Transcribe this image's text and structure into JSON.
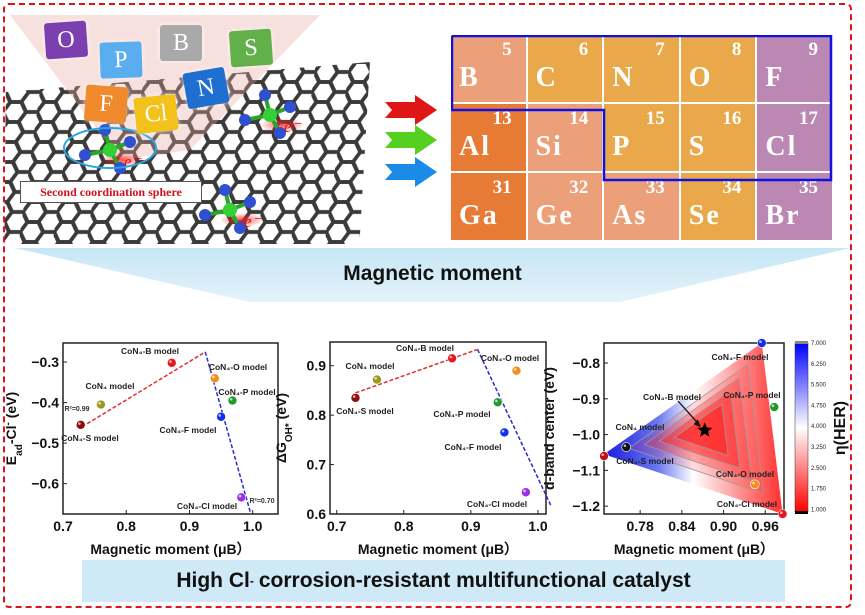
{
  "illustration": {
    "tiles": [
      {
        "label": "O",
        "color": "#7b3fb0"
      },
      {
        "label": "P",
        "color": "#5aaef0"
      },
      {
        "label": "B",
        "color": "#a9a9a9"
      },
      {
        "label": "S",
        "color": "#62b04a"
      },
      {
        "label": "F",
        "color": "#f08a2c"
      },
      {
        "label": "Cl",
        "color": "#f2c21a"
      },
      {
        "label": "N",
        "color": "#1f6fd0"
      }
    ],
    "sphere_label": "Second coordination sphere",
    "electron_label": "e⁻"
  },
  "periodic_table": {
    "cells": [
      {
        "symbol": "B",
        "number": "5",
        "color": "#eba07a"
      },
      {
        "symbol": "C",
        "number": "6",
        "color": "#e9a94a"
      },
      {
        "symbol": "N",
        "number": "7",
        "color": "#e9a94a"
      },
      {
        "symbol": "O",
        "number": "8",
        "color": "#e9a94a"
      },
      {
        "symbol": "F",
        "number": "9",
        "color": "#bb88b3"
      },
      {
        "symbol": "Al",
        "number": "13",
        "color": "#e77a35"
      },
      {
        "symbol": "Si",
        "number": "14",
        "color": "#eba07a"
      },
      {
        "symbol": "P",
        "number": "15",
        "color": "#e9a94a"
      },
      {
        "symbol": "S",
        "number": "16",
        "color": "#e9a94a"
      },
      {
        "symbol": "Cl",
        "number": "17",
        "color": "#bb88b3"
      },
      {
        "symbol": "Ga",
        "number": "31",
        "color": "#e77a35"
      },
      {
        "symbol": "Ge",
        "number": "32",
        "color": "#eba07a"
      },
      {
        "symbol": "As",
        "number": "33",
        "color": "#eba07a"
      },
      {
        "symbol": "Se",
        "number": "34",
        "color": "#e9a94a"
      },
      {
        "symbol": "Br",
        "number": "35",
        "color": "#bb88b3"
      }
    ],
    "highlight_color": "#1010e0"
  },
  "heading": "Magnetic moment",
  "banner": {
    "pre": "High Cl",
    "sup": "-",
    "post": " corrosion-resistant multifunctional catalyst"
  },
  "chart_data": [
    {
      "type": "scatter",
      "xlabel": "Magnetic moment (μB）",
      "ylabel_parts": [
        {
          "t": "E"
        },
        {
          "t": "ad",
          "sub": true
        },
        {
          "t": "-Cl"
        },
        {
          "t": "-",
          "sup": true
        },
        {
          "t": " (eV)"
        }
      ],
      "xlim": [
        0.7,
        1.04
      ],
      "ylim": [
        -0.675,
        -0.253
      ],
      "xticks": [
        "0.7",
        "0.8",
        "0.9",
        "1.0"
      ],
      "yticks": [
        "-0.3",
        "-0.4",
        "-0.5",
        "-0.6"
      ],
      "points": [
        {
          "label": "CoN₄-S model",
          "x": 0.728,
          "y": -0.455,
          "color": "#8b0f0f"
        },
        {
          "label": "CoN₄ model",
          "x": 0.76,
          "y": -0.405,
          "color": "#9a9a1e"
        },
        {
          "label": "CoN₄-B model",
          "x": 0.872,
          "y": -0.302,
          "color": "#e8171f"
        },
        {
          "label": "CoN₄-O model",
          "x": 0.94,
          "y": -0.34,
          "color": "#f28c1a"
        },
        {
          "label": "CoN₄-P model",
          "x": 0.968,
          "y": -0.395,
          "color": "#1f9a2a"
        },
        {
          "label": "CoN₄-F model",
          "x": 0.95,
          "y": -0.435,
          "color": "#1030e8"
        },
        {
          "label": "CoN₄-Cl model",
          "x": 0.982,
          "y": -0.634,
          "color": "#9a30e0"
        }
      ],
      "fits": [
        {
          "from": [
            0.73,
            -0.46
          ],
          "to": [
            0.925,
            -0.275
          ],
          "color": "#e03030",
          "annotation": "R²=0.99"
        },
        {
          "from": [
            0.925,
            -0.275
          ],
          "to": [
            0.997,
            -0.675
          ],
          "color": "#2a2ad0",
          "annotation": "R²=0.70"
        }
      ]
    },
    {
      "type": "scatter",
      "xlabel": "Magnetic moment (μB）",
      "ylabel_parts": [
        {
          "t": "ΔG"
        },
        {
          "t": "OH*",
          "sub": true
        },
        {
          "t": " (eV)"
        }
      ],
      "xlim": [
        0.69,
        1.012
      ],
      "ylim": [
        0.6,
        0.948
      ],
      "xticks": [
        "0.7",
        "0.8",
        "0.9",
        "1.0"
      ],
      "yticks": [
        "0.9",
        "0.8",
        "0.7",
        "0.6"
      ],
      "points": [
        {
          "label": "CoN₄-S model",
          "x": 0.728,
          "y": 0.835,
          "color": "#8b0f0f"
        },
        {
          "label": "CoN₄ model",
          "x": 0.76,
          "y": 0.872,
          "color": "#9a9a1e"
        },
        {
          "label": "CoN₄-B model",
          "x": 0.872,
          "y": 0.915,
          "color": "#e8171f"
        },
        {
          "label": "CoN₄-O model",
          "x": 0.968,
          "y": 0.89,
          "color": "#f28c1a"
        },
        {
          "label": "CoN₄-P model",
          "x": 0.94,
          "y": 0.826,
          "color": "#1f9a2a"
        },
        {
          "label": "CoN₄-F model",
          "x": 0.95,
          "y": 0.765,
          "color": "#1030e8"
        },
        {
          "label": "CoN₄-Cl model",
          "x": 0.982,
          "y": 0.644,
          "color": "#9a30e0"
        }
      ],
      "fits": [
        {
          "from": [
            0.728,
            0.845
          ],
          "to": [
            0.91,
            0.933
          ],
          "color": "#e03030"
        },
        {
          "from": [
            0.91,
            0.933
          ],
          "to": [
            1.02,
            0.615
          ],
          "color": "#2a2ad0"
        }
      ]
    },
    {
      "type": "heatmap",
      "xlabel": "Magnetic moment (μB）",
      "ylabel_parts": [
        {
          "t": "d-band center (eV)"
        }
      ],
      "xlim": [
        0.728,
        0.987
      ],
      "ylim": [
        -1.222,
        -0.744
      ],
      "xticks": [
        "0.78",
        "0.84",
        "0.90",
        "0.96"
      ],
      "yticks": [
        "-0.8",
        "-0.9",
        "-1.0",
        "-1.1",
        "-1.2"
      ],
      "colorbar": {
        "label": "η(HER)",
        "ticks": [
          "7.000",
          "6.250",
          "5.500",
          "4.750",
          "4.000",
          "3.250",
          "2.500",
          "1.750",
          "1.000"
        ],
        "low_color": "#ff0000",
        "mid_color": "#ffffff",
        "high_color": "#0000ff"
      },
      "domain": [
        [
          0.728,
          -1.055
        ],
        [
          0.955,
          -0.744
        ],
        [
          0.985,
          -1.222
        ]
      ],
      "points": [
        {
          "label": "CoN₄-F model",
          "x": 0.955,
          "y": -0.744,
          "color": "#1030e8",
          "marker": "circle"
        },
        {
          "label": "CoN₄-B model",
          "x": 0.873,
          "y": -0.988,
          "color": "#000000",
          "marker": "star"
        },
        {
          "label": "CoN₄-P model",
          "x": 0.973,
          "y": -0.923,
          "color": "#1f9a2a",
          "marker": "circle"
        },
        {
          "label": "CoN₄ model",
          "x": 0.76,
          "y": -1.035,
          "color": "#111111",
          "marker": "circle"
        },
        {
          "label": "CoN₄-S model",
          "x": 0.728,
          "y": -1.06,
          "color": "#c01010",
          "marker": "circle"
        },
        {
          "label": "CoN₄-O model",
          "x": 0.945,
          "y": -1.139,
          "color": "#f28c1a",
          "marker": "circle"
        },
        {
          "label": "CoN₄-Cl model",
          "x": 0.985,
          "y": -1.222,
          "color": "#e8171f",
          "marker": "circle"
        }
      ]
    }
  ]
}
